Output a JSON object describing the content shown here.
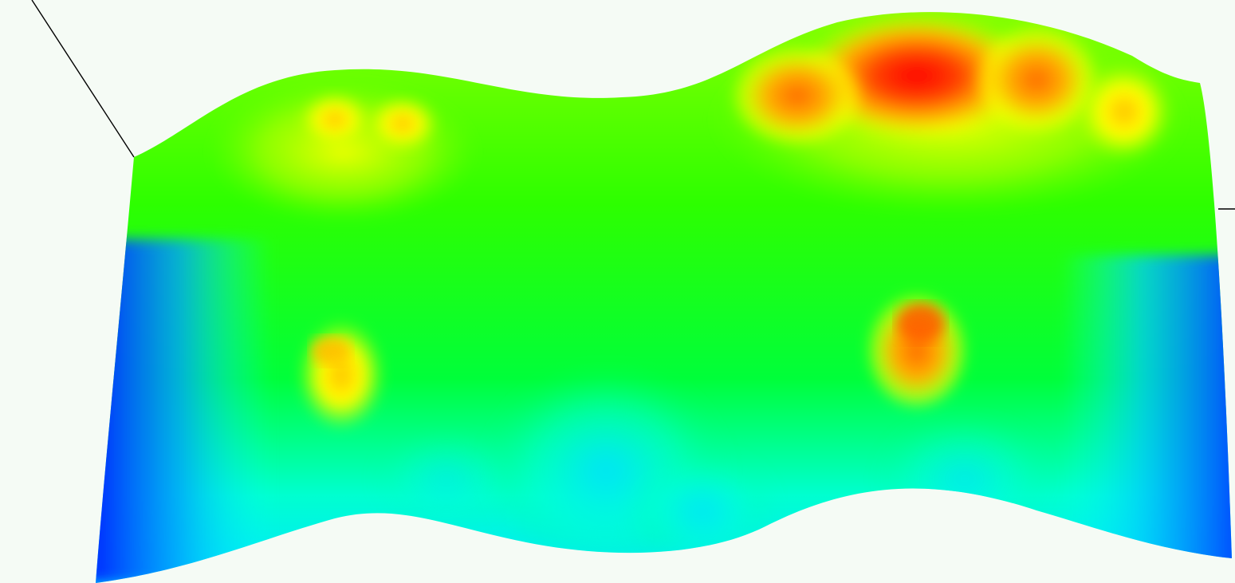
{
  "scene": {
    "background": "#f5fbf5",
    "colormap": [
      "#0000ff",
      "#00ffff",
      "#00ff00",
      "#ffff00",
      "#ff8000",
      "#ff0000"
    ],
    "surface_type": "colored height surface",
    "peaks": [
      {
        "name": "peak-top-left",
        "level": 0.7
      },
      {
        "name": "peak-top-right",
        "level": 1.0
      },
      {
        "name": "peak-lower-left",
        "level": 0.75
      },
      {
        "name": "peak-lower-right",
        "level": 0.85
      }
    ],
    "axis_line_color": "#000000"
  }
}
